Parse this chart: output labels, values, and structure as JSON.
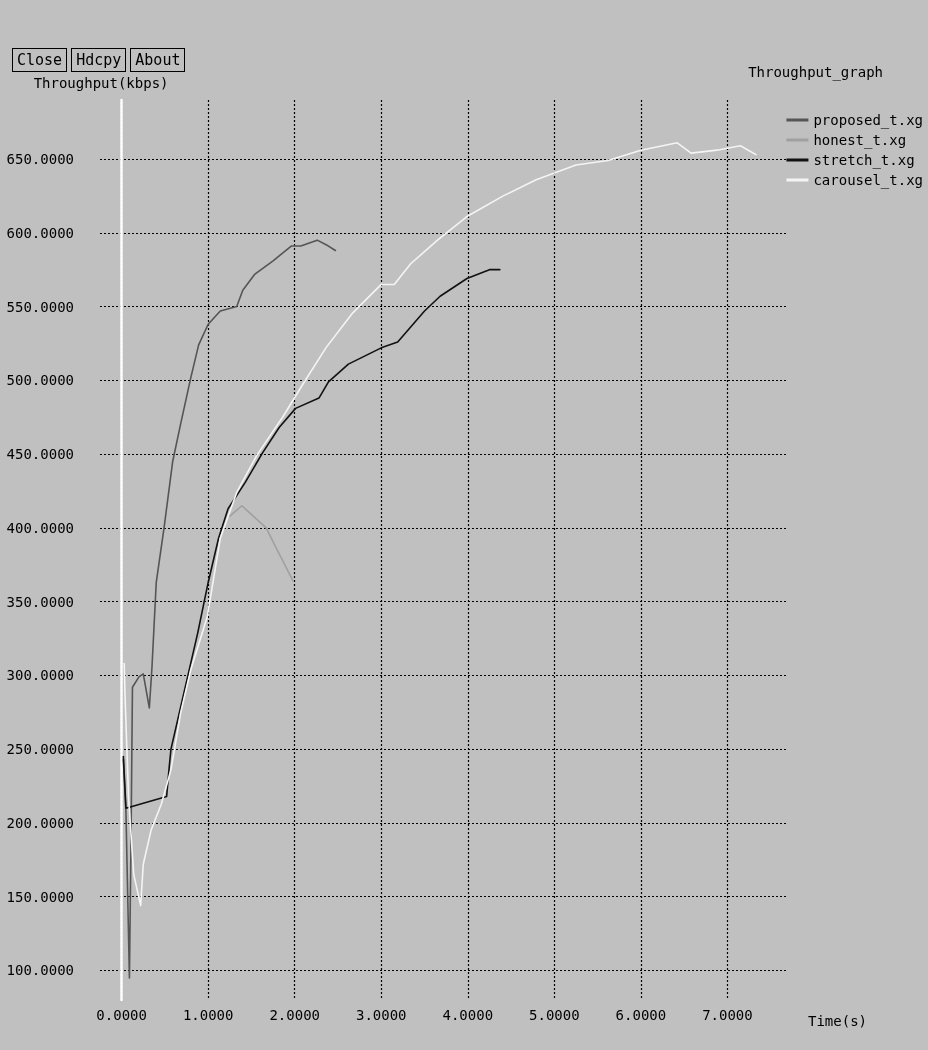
{
  "chart_data": {
    "type": "line",
    "title": "Throughput_graph",
    "xlabel": "Time(s)",
    "ylabel": "Throughput(kbps)",
    "annotations": [
      "Close",
      "Hdcpy",
      "About"
    ],
    "xlim": [
      -0.25,
      7.7
    ],
    "ylim": [
      80,
      690
    ],
    "xticks": [
      {
        "value": 0,
        "label": "0.0000"
      },
      {
        "value": 1,
        "label": "1.0000"
      },
      {
        "value": 2,
        "label": "2.0000"
      },
      {
        "value": 3,
        "label": "3.0000"
      },
      {
        "value": 4,
        "label": "4.0000"
      },
      {
        "value": 5,
        "label": "5.0000"
      },
      {
        "value": 6,
        "label": "6.0000"
      },
      {
        "value": 7,
        "label": "7.0000"
      }
    ],
    "yticks": [
      {
        "value": 100,
        "label": "100.0000"
      },
      {
        "value": 150,
        "label": "150.0000"
      },
      {
        "value": 200,
        "label": "200.0000"
      },
      {
        "value": 250,
        "label": "250.0000"
      },
      {
        "value": 300,
        "label": "300.0000"
      },
      {
        "value": 350,
        "label": "350.0000"
      },
      {
        "value": 400,
        "label": "400.0000"
      },
      {
        "value": 450,
        "label": "450.0000"
      },
      {
        "value": 500,
        "label": "500.0000"
      },
      {
        "value": 550,
        "label": "550.0000"
      },
      {
        "value": 600,
        "label": "600.0000"
      },
      {
        "value": 650,
        "label": "650.0000"
      }
    ],
    "grid": true,
    "legend": "top right",
    "marker": "none",
    "line_style": "solid",
    "series": [
      {
        "name": "proposed_t.xg",
        "color": "#555555",
        "x": [
          0.02,
          0.05,
          0.09,
          0.11,
          0.125,
          0.2,
          0.25,
          0.32,
          0.35,
          0.4,
          0.49,
          0.59,
          0.68,
          0.8,
          0.89,
          1.0,
          1.14,
          1.33,
          1.4,
          1.54,
          1.75,
          1.96,
          2.07,
          2.26,
          2.39,
          2.47
        ],
        "values": [
          243,
          207,
          95,
          197,
          292,
          299,
          301,
          278,
          305,
          363,
          400,
          445,
          470,
          502,
          524,
          538,
          547,
          550,
          561,
          572,
          581,
          591,
          591,
          595,
          591,
          588
        ]
      },
      {
        "name": "honest_t.xg",
        "color": "#a0a0a0",
        "x": [
          1.25,
          1.39,
          1.52,
          1.67,
          1.79,
          1.98
        ],
        "values": [
          408,
          415,
          408,
          400,
          386,
          364
        ]
      },
      {
        "name": "stretch_t.xg",
        "color": "#111111",
        "x": [
          0.02,
          0.05,
          0.52,
          0.55,
          0.57,
          0.88,
          1.0,
          1.12,
          1.23,
          1.43,
          1.63,
          1.82,
          2.01,
          2.28,
          2.39,
          2.62,
          3.0,
          3.19,
          3.5,
          3.68,
          3.99,
          4.25,
          4.37
        ],
        "values": [
          245,
          210,
          218,
          238,
          250,
          329,
          363,
          393,
          413,
          431,
          451,
          468,
          481,
          488,
          499,
          511,
          522,
          526,
          547,
          557,
          569,
          575,
          575
        ]
      },
      {
        "name": "carousel_t.xg",
        "color": "#f4f4f4",
        "x": [
          0.03,
          0.04,
          0.08,
          0.14,
          0.22,
          0.25,
          0.34,
          0.46,
          0.57,
          0.68,
          0.8,
          0.99,
          1.14,
          1.33,
          1.56,
          1.86,
          2.09,
          2.36,
          2.66,
          3.0,
          3.15,
          3.34,
          3.65,
          3.99,
          4.41,
          4.79,
          5.25,
          5.62,
          6.0,
          6.42,
          6.58,
          6.88,
          7.15,
          7.33
        ],
        "values": [
          308,
          285,
          217,
          165,
          144,
          172,
          195,
          213,
          236,
          274,
          304,
          340,
          393,
          424,
          449,
          475,
          497,
          522,
          545,
          565,
          565,
          579,
          595,
          611,
          625,
          636,
          646,
          649,
          656,
          661,
          654,
          656,
          659,
          653
        ]
      }
    ]
  }
}
